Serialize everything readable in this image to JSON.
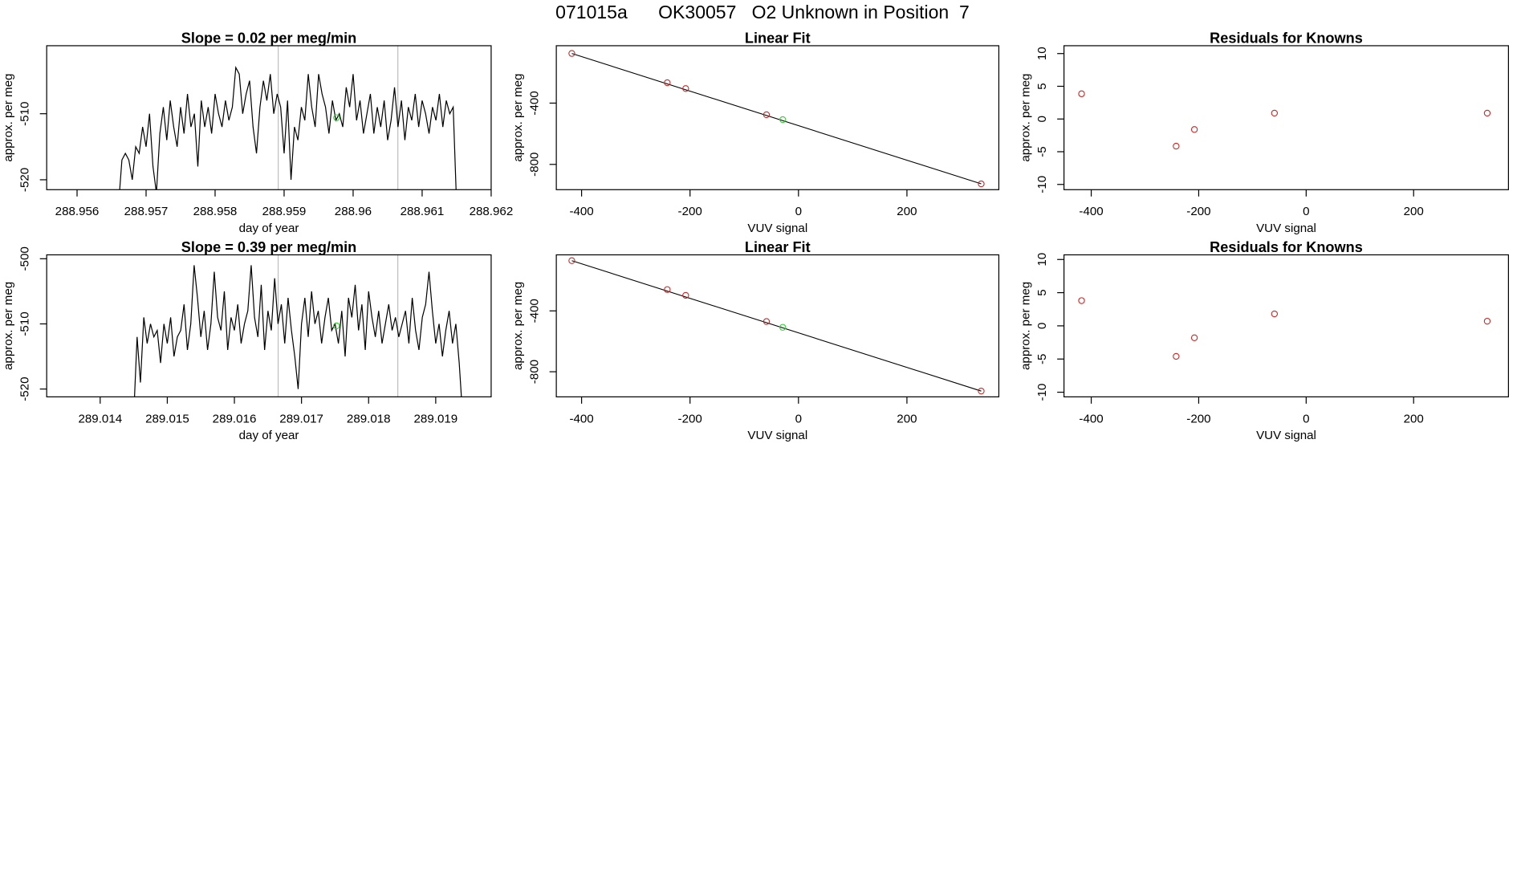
{
  "title": "071015a      OK30057   O2 Unknown in Position  7",
  "chart_data": [
    {
      "type": "line",
      "title": "Slope =  0.02  per meg/min",
      "xlabel": "day of year",
      "ylabel": "approx. per meg",
      "xlim": [
        288.95556,
        288.962
      ],
      "ylim": [
        -521.5,
        -499.7
      ],
      "xticks": [
        288.956,
        288.957,
        288.958,
        288.959,
        288.96,
        288.961,
        288.962
      ],
      "yticks": [
        -520,
        -510
      ],
      "vlines": [
        288.958915,
        288.960648
      ],
      "vline_color": "#bebebe",
      "x": [
        288.9566,
        288.95665,
        288.9567,
        288.95675,
        288.9568,
        288.95685,
        288.9569,
        288.95695,
        288.957,
        288.95705,
        288.9571,
        288.95715,
        288.9572,
        288.95725,
        288.9573,
        288.95735,
        288.9574,
        288.95745,
        288.9575,
        288.95755,
        288.9576,
        288.95765,
        288.9577,
        288.95775,
        288.9578,
        288.95785,
        288.9579,
        288.95795,
        288.958,
        288.95805,
        288.9581,
        288.95815,
        288.9582,
        288.95825,
        288.9583,
        288.95835,
        288.9584,
        288.95845,
        288.9585,
        288.95855,
        288.9586,
        288.95865,
        288.9587,
        288.95875,
        288.9588,
        288.95885,
        288.9589,
        288.95895,
        288.959,
        288.95905,
        288.9591,
        288.95915,
        288.9592,
        288.95925,
        288.9593,
        288.95935,
        288.9594,
        288.95945,
        288.9595,
        288.95955,
        288.9596,
        288.95965,
        288.9597,
        288.95975,
        288.9598,
        288.95985,
        288.9599,
        288.95995,
        288.96,
        288.96005,
        288.9601,
        288.96015,
        288.9602,
        288.96025,
        288.9603,
        288.96035,
        288.9604,
        288.96045,
        288.9605,
        288.96055,
        288.9606,
        288.96065,
        288.9607,
        288.96075,
        288.9608,
        288.96085,
        288.9609,
        288.96095,
        288.961,
        288.96105,
        288.9611,
        288.96115,
        288.9612,
        288.96125,
        288.9613,
        288.96135,
        288.9614,
        288.96145,
        288.9615
      ],
      "series": [
        {
          "color": "#000000",
          "values": [
            -524,
            -517,
            -516,
            -517,
            -520,
            -515,
            -516,
            -512,
            -515,
            -510,
            -518,
            -522,
            -513,
            -509,
            -514,
            -508,
            -512,
            -515,
            -509,
            -513,
            -507,
            -512,
            -510,
            -518,
            -508,
            -512,
            -509,
            -513,
            -507,
            -510,
            -512,
            -508,
            -511,
            -509,
            -503,
            -504,
            -510,
            -507,
            -505,
            -512,
            -516,
            -509,
            -505,
            -508,
            -504,
            -510,
            -507,
            -509,
            -516,
            -508,
            -520,
            -512,
            -514,
            -509,
            -511,
            -504,
            -509,
            -512,
            -504,
            -507,
            -509,
            -513,
            -508,
            -511,
            -510,
            -512,
            -506,
            -509,
            -504,
            -511,
            -508,
            -513,
            -510,
            -507,
            -513,
            -509,
            -512,
            -508,
            -514,
            -511,
            -506,
            -512,
            -508,
            -514,
            -509,
            -511,
            -507,
            -512,
            -508,
            -510,
            -513,
            -509,
            -511,
            -507,
            -512,
            -508,
            -510,
            -509,
            -524
          ]
        }
      ],
      "points": {
        "color": "#33cc33",
        "x": [
          288.95976
        ],
        "values": [
          -510.6
        ]
      }
    },
    {
      "type": "scatter",
      "title": "Linear Fit",
      "xlabel": "VUV signal",
      "ylabel": "approx. per meg",
      "xlim": [
        -446.6,
        369.5
      ],
      "ylim": [
        -965,
        -25.4
      ],
      "xticks": [
        -400,
        -200,
        0,
        200
      ],
      "yticks": [
        -800,
        -400
      ],
      "x": [
        -418,
        -242,
        -208,
        -59,
        337
      ],
      "series": [
        {
          "color": "#cd2626",
          "values": [
            -76,
            -267,
            -305,
            -476,
            -927
          ]
        }
      ],
      "points": {
        "color": "#33cc33",
        "x": [
          -29
        ],
        "values": [
          -508
        ]
      },
      "fit": {
        "color": "#000000",
        "x": [
          -418,
          337
        ],
        "values": [
          -76,
          -927
        ]
      }
    },
    {
      "type": "scatter",
      "title": "Residuals for Knowns",
      "xlabel": "VUV signal",
      "ylabel": "approx. per meg",
      "xlim": [
        -450.7,
        376.5
      ],
      "ylim": [
        -10.8,
        11.2
      ],
      "xticks": [
        -400,
        -200,
        0,
        200
      ],
      "yticks": [
        -10,
        -5,
        0,
        5,
        10
      ],
      "x": [
        -418,
        -242,
        -208,
        -59,
        337
      ],
      "series": [
        {
          "color": "#cd2626",
          "values": [
            3.85,
            -4.15,
            -1.6,
            0.9,
            0.9
          ]
        }
      ]
    },
    {
      "type": "line",
      "title": "Slope =  0.39  per meg/min",
      "xlabel": "day of year",
      "ylabel": "approx. per meg",
      "xlim": [
        289.013203,
        289.019826
      ],
      "ylim": [
        -521.2,
        -499.4
      ],
      "xticks": [
        289.014,
        289.015,
        289.016,
        289.017,
        289.018,
        289.019
      ],
      "yticks": [
        -520,
        -510,
        -500
      ],
      "vlines": [
        289.016652,
        289.018435
      ],
      "vline_color": "#bebebe",
      "x": [
        289.0145,
        289.01455,
        289.0146,
        289.01465,
        289.0147,
        289.01475,
        289.0148,
        289.01485,
        289.0149,
        289.01495,
        289.015,
        289.01505,
        289.0151,
        289.01515,
        289.0152,
        289.01525,
        289.0153,
        289.01535,
        289.0154,
        289.01545,
        289.0155,
        289.01555,
        289.0156,
        289.01565,
        289.0157,
        289.01575,
        289.0158,
        289.01585,
        289.0159,
        289.01595,
        289.016,
        289.01605,
        289.0161,
        289.01615,
        289.0162,
        289.01625,
        289.0163,
        289.01635,
        289.0164,
        289.01645,
        289.0165,
        289.01655,
        289.0166,
        289.01665,
        289.0167,
        289.01675,
        289.0168,
        289.01685,
        289.0169,
        289.01695,
        289.017,
        289.01705,
        289.0171,
        289.01715,
        289.0172,
        289.01725,
        289.0173,
        289.01735,
        289.0174,
        289.01745,
        289.0175,
        289.01755,
        289.0176,
        289.01765,
        289.0177,
        289.01775,
        289.0178,
        289.01785,
        289.0179,
        289.01795,
        289.018,
        289.01805,
        289.0181,
        289.01815,
        289.0182,
        289.01825,
        289.0183,
        289.01835,
        289.0184,
        289.01845,
        289.0185,
        289.01855,
        289.0186,
        289.01865,
        289.0187,
        289.01875,
        289.0188,
        289.01885,
        289.0189,
        289.01895,
        289.019,
        289.01905,
        289.0191,
        289.01915,
        289.0192,
        289.01925,
        289.0193,
        289.01935,
        289.0194
      ],
      "series": [
        {
          "color": "#000000",
          "values": [
            -524,
            -512,
            -519,
            -509,
            -513,
            -510,
            -512,
            -511,
            -516,
            -510,
            -513,
            -509,
            -515,
            -512,
            -511,
            -507,
            -514,
            -510,
            -501,
            -506,
            -512,
            -508,
            -514,
            -510,
            -502,
            -509,
            -511,
            -505,
            -514,
            -509,
            -511,
            -507,
            -513,
            -510,
            -508,
            -501,
            -509,
            -512,
            -504,
            -514,
            -508,
            -511,
            -503,
            -510,
            -507,
            -513,
            -506,
            -511,
            -515,
            -520,
            -510,
            -506,
            -512,
            -505,
            -510,
            -508,
            -513,
            -509,
            -506,
            -511,
            -510,
            -513,
            -508,
            -515,
            -506,
            -509,
            -504,
            -511,
            -507,
            -514,
            -505,
            -509,
            -512,
            -508,
            -513,
            -510,
            -507,
            -511,
            -509,
            -512,
            -510,
            -508,
            -513,
            -506,
            -511,
            -514,
            -509,
            -507,
            -502,
            -508,
            -513,
            -510,
            -515,
            -511,
            -508,
            -513,
            -510,
            -516,
            -524
          ]
        }
      ],
      "points": {
        "color": "#33cc33",
        "x": [
          289.017522
        ],
        "values": [
          -510.3
        ]
      }
    },
    {
      "type": "scatter",
      "title": "Linear Fit",
      "xlabel": "VUV signal",
      "ylabel": "approx. per meg",
      "xlim": [
        -446.6,
        369.5
      ],
      "ylim": [
        -965,
        -31.7
      ],
      "xticks": [
        -400,
        -200,
        0,
        200
      ],
      "yticks": [
        -800,
        -400
      ],
      "x": [
        -418,
        -242,
        -208,
        -59,
        337
      ],
      "series": [
        {
          "color": "#cd2626",
          "values": [
            -70,
            -260,
            -298,
            -470,
            -927
          ]
        }
      ],
      "points": {
        "color": "#33cc33",
        "x": [
          -29
        ],
        "values": [
          -508
        ]
      },
      "fit": {
        "color": "#000000",
        "x": [
          -418,
          337
        ],
        "values": [
          -70,
          -927
        ]
      }
    },
    {
      "type": "scatter",
      "title": "Residuals for Knowns",
      "xlabel": "VUV signal",
      "ylabel": "approx. per meg",
      "xlim": [
        -450.7,
        376.5
      ],
      "ylim": [
        -10.7,
        10.7
      ],
      "xticks": [
        -400,
        -200,
        0,
        200
      ],
      "yticks": [
        -10,
        -5,
        0,
        5,
        10
      ],
      "x": [
        -418,
        -242,
        -208,
        -59,
        337
      ],
      "series": [
        {
          "color": "#cd2626",
          "values": [
            3.8,
            -4.6,
            -1.8,
            1.8,
            0.7
          ]
        }
      ]
    }
  ]
}
